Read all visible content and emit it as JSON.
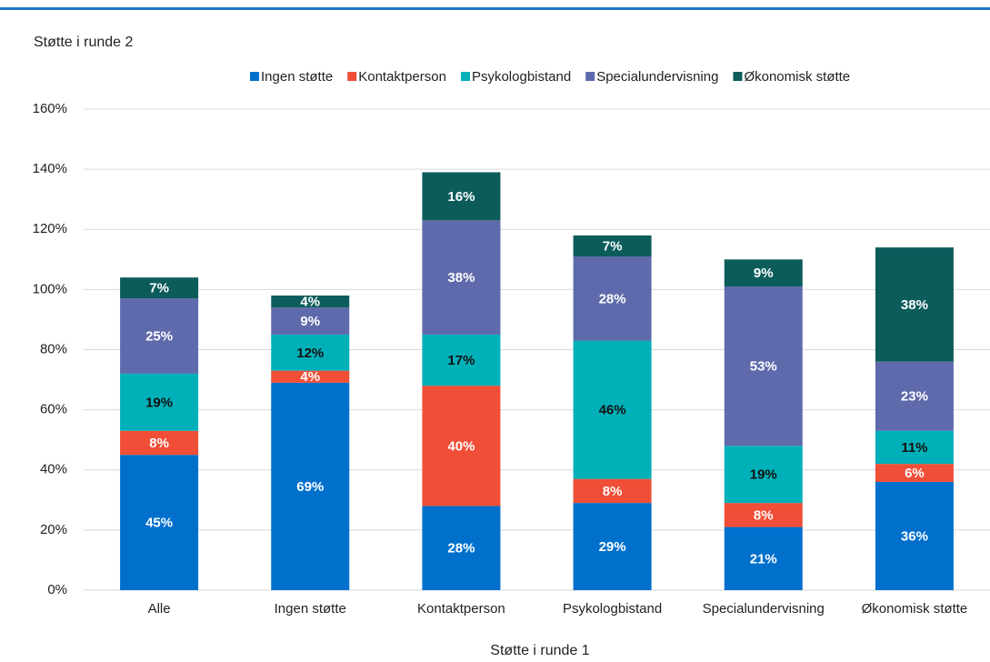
{
  "chart_data": {
    "type": "stacked_bar",
    "title": "Støtte i runde 2",
    "x_label": "Støtte i runde 1",
    "categories": [
      "Alle",
      "Ingen støtte",
      "Kontaktperson",
      "Psykologbistand",
      "Specialundervisning",
      "Økonomisk støtte"
    ],
    "series": [
      {
        "name": "Ingen støtte",
        "color": "#0070cc",
        "label_color": "#ffffff",
        "values": [
          45,
          69,
          28,
          29,
          21,
          36
        ],
        "value_labels": [
          "45%",
          "69%",
          "28%",
          "29%",
          "21%",
          "36%"
        ]
      },
      {
        "name": "Kontaktperson",
        "color": "#f04e37",
        "label_color": "#ffffff",
        "values": [
          8,
          4,
          40,
          8,
          8,
          6
        ],
        "value_labels": [
          "8%",
          "4%",
          "40%",
          "8%",
          "8%",
          "6%"
        ]
      },
      {
        "name": "Psykologbistand",
        "color": "#00b0b9",
        "label_color": "#111111",
        "values": [
          19,
          12,
          17,
          46,
          19,
          11
        ],
        "value_labels": [
          "19%",
          "12%",
          "17%",
          "46%",
          "19%",
          "11%"
        ]
      },
      {
        "name": "Specialundervisning",
        "color": "#5f6aac",
        "label_color": "#ffffff",
        "values": [
          25,
          9,
          38,
          28,
          53,
          23
        ],
        "value_labels": [
          "25%",
          "9%",
          "38%",
          "28%",
          "53%",
          "23%"
        ]
      },
      {
        "name": "Økonomisk støtte",
        "color": "#0d5c5c",
        "label_color": "#ffffff",
        "values": [
          7,
          4,
          16,
          7,
          9,
          38
        ],
        "value_labels": [
          "7%",
          "4%",
          "16%",
          "7%",
          "9%",
          "38%"
        ]
      }
    ],
    "ylim": [
      0,
      160
    ],
    "yticks": [
      {
        "value": 0,
        "label": "0%"
      },
      {
        "value": 20,
        "label": "20%"
      },
      {
        "value": 40,
        "label": "40%"
      },
      {
        "value": 60,
        "label": "60%"
      },
      {
        "value": 80,
        "label": "80%"
      },
      {
        "value": 100,
        "label": "100%"
      },
      {
        "value": 120,
        "label": "120%"
      },
      {
        "value": 140,
        "label": "140%"
      },
      {
        "value": 160,
        "label": "160%"
      }
    ],
    "grid": true,
    "legend": "top"
  }
}
